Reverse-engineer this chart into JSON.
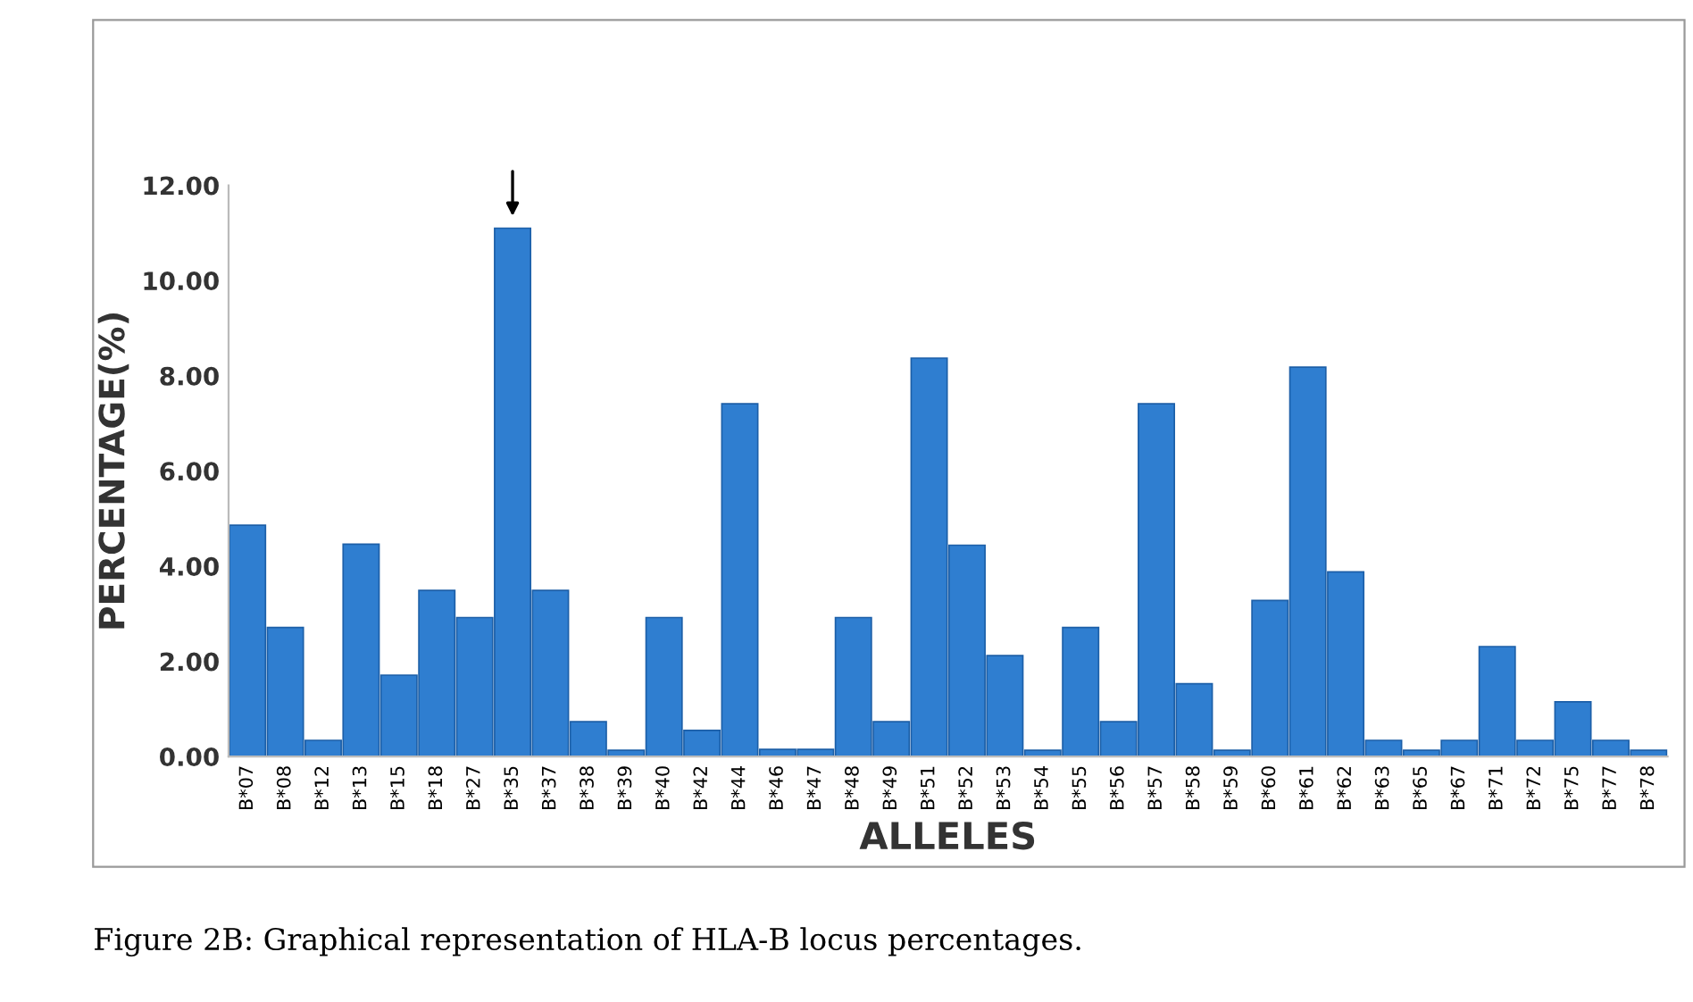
{
  "chart_data": {
    "type": "bar",
    "xlabel": "ALLELES",
    "ylabel": "PERCENTAGE(%)",
    "categories": [
      "B*07",
      "B*08",
      "B*12",
      "B*13",
      "B*15",
      "B*18",
      "B*27",
      "B*35",
      "B*37",
      "B*38",
      "B*39",
      "B*40",
      "B*42",
      "B*44",
      "B*46",
      "B*47",
      "B*48",
      "B*49",
      "B*51",
      "B*52",
      "B*53",
      "B*54",
      "B*55",
      "B*56",
      "B*57",
      "B*58",
      "B*59",
      "B*60",
      "B*61",
      "B*62",
      "B*63",
      "B*65",
      "B*67",
      "B*71",
      "B*72",
      "B*75",
      "B*77",
      "B*78"
    ],
    "values": [
      4.86,
      2.71,
      0.34,
      4.46,
      1.71,
      3.49,
      2.92,
      11.1,
      3.49,
      0.73,
      0.13,
      2.92,
      0.55,
      7.41,
      0.15,
      0.15,
      2.92,
      0.73,
      8.37,
      4.44,
      2.12,
      0.13,
      2.71,
      0.73,
      7.41,
      1.53,
      0.13,
      3.28,
      8.18,
      3.88,
      0.34,
      0.13,
      0.34,
      2.31,
      0.34,
      1.15,
      0.34,
      0.13
    ],
    "color": "#2f7ed0",
    "ylim": [
      0,
      12
    ],
    "yticks": [
      {
        "value": 0,
        "label": "0.00"
      },
      {
        "value": 2,
        "label": "2.00"
      },
      {
        "value": 4,
        "label": "4.00"
      },
      {
        "value": 6,
        "label": "6.00"
      },
      {
        "value": 8,
        "label": "8.00"
      },
      {
        "value": 10,
        "label": "10.00"
      },
      {
        "value": 12,
        "label": "12.00"
      }
    ],
    "grid": false,
    "annotations": [
      "Figure 2B: Graphical representation of HLA-B locus percentages."
    ]
  }
}
